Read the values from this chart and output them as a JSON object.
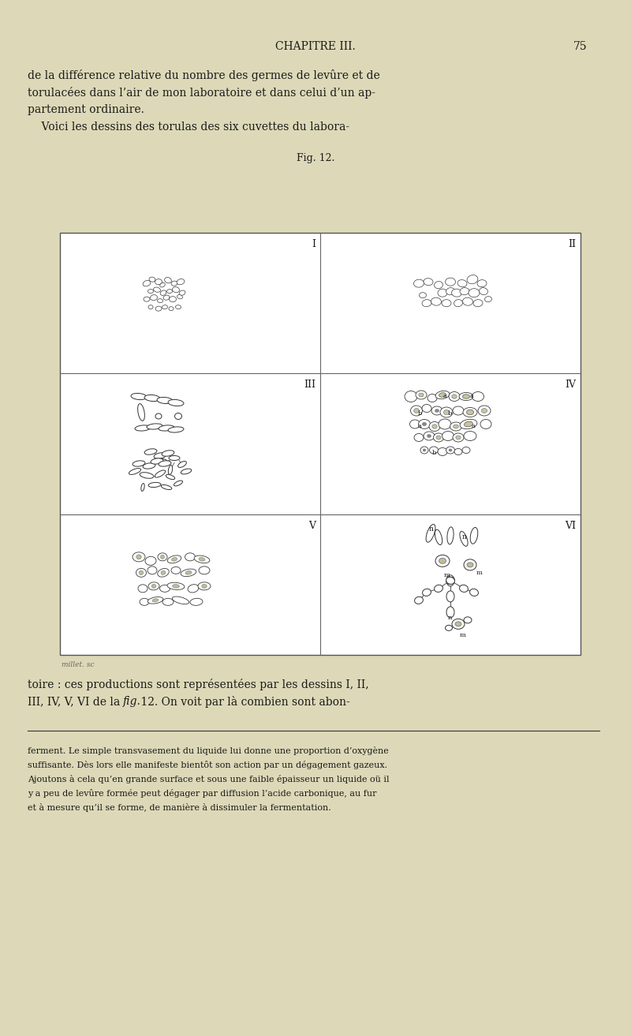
{
  "bg_color": "#ddd9b8",
  "page_width": 8.0,
  "page_height": 13.13,
  "dpi": 100,
  "header_chapter": "CHAPITRE III.",
  "header_page": "75",
  "top_text_lines": [
    "de la différence relative du nombre des germes de levûre et de",
    "torulacées dans l’air de mon laboratoire et dans celui d’un ap-",
    "partement ordinaire.",
    "    Voici les dessins des torulas des six cuvettes du labora-"
  ],
  "fig_caption": "Fig. 12.",
  "panel_labels": [
    "I",
    "II",
    "III",
    "IV",
    "V",
    "VI"
  ],
  "bottom_text_lines": [
    "toire : ces productions sont représentées par les dessins I, II,",
    "III, IV, V, VI de la fig. 12. On voit par là combien sont abon-"
  ],
  "footnote_lines": [
    "ferment. Le simple transvasement du liquide lui donne une proportion d’oxygène",
    "suffisante. Dès lors elle manifeste bientôt son action par un dégagement gazeux.",
    "Ajoutons à cela qu’en grande surface et sous une faible épaisseur un liquide oü il",
    "y a peu de levûre formée peut dégager par diffusion l’acide carbonique, au fur",
    "et à mesure qu’il se forme, de manière à dissimuler la fermentation."
  ],
  "credit_text": "millet. sc",
  "text_color": "#1a1a1a",
  "font_size_header": 10,
  "font_size_body": 10,
  "font_size_footnote": 8.0,
  "font_size_caption": 9,
  "font_size_panel": 9
}
